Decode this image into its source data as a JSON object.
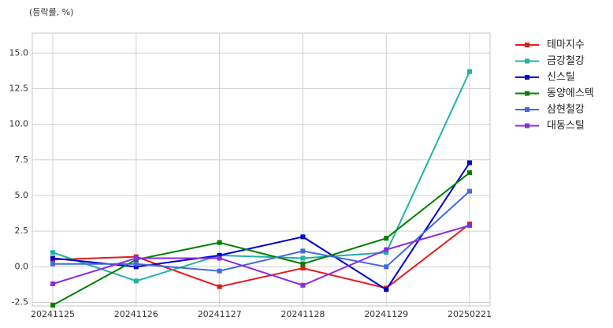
{
  "chart_data": {
    "type": "line",
    "ylabel": "(등락률, %)",
    "categories": [
      "20241125",
      "20241126",
      "20241127",
      "20241128",
      "20241129",
      "20250221"
    ],
    "series": [
      {
        "name": "테마지수",
        "color": "#e41a1c",
        "values": [
          0.5,
          0.7,
          -1.4,
          -0.1,
          -1.5,
          3.0
        ]
      },
      {
        "name": "금강철강",
        "color": "#20b2aa",
        "values": [
          1.0,
          -1.0,
          0.8,
          0.6,
          1.0,
          13.7
        ]
      },
      {
        "name": "신스틸",
        "color": "#0000cd",
        "values": [
          0.6,
          0.0,
          0.8,
          2.1,
          -1.6,
          7.3
        ]
      },
      {
        "name": "동양에스텍",
        "color": "#008000",
        "values": [
          -2.7,
          0.5,
          1.7,
          0.2,
          2.0,
          6.6
        ]
      },
      {
        "name": "삼현철강",
        "color": "#4169e1",
        "values": [
          0.2,
          0.2,
          -0.3,
          1.1,
          0.0,
          5.3
        ]
      },
      {
        "name": "대동스틸",
        "color": "#8a2be2",
        "values": [
          -1.2,
          0.6,
          0.6,
          -1.3,
          1.2,
          2.9
        ]
      }
    ],
    "ylim": [
      -2.75,
      16.4
    ],
    "yticks": [
      -2.5,
      {
        "value": 0,
        "label": "0.0"
      },
      2.5,
      {
        "value": 5,
        "label": "5.0"
      },
      7.5,
      {
        "value": 10,
        "label": "10.0"
      },
      12.5,
      {
        "value": 15,
        "label": "15.0"
      }
    ],
    "grid": true,
    "legend": "outside-right"
  }
}
